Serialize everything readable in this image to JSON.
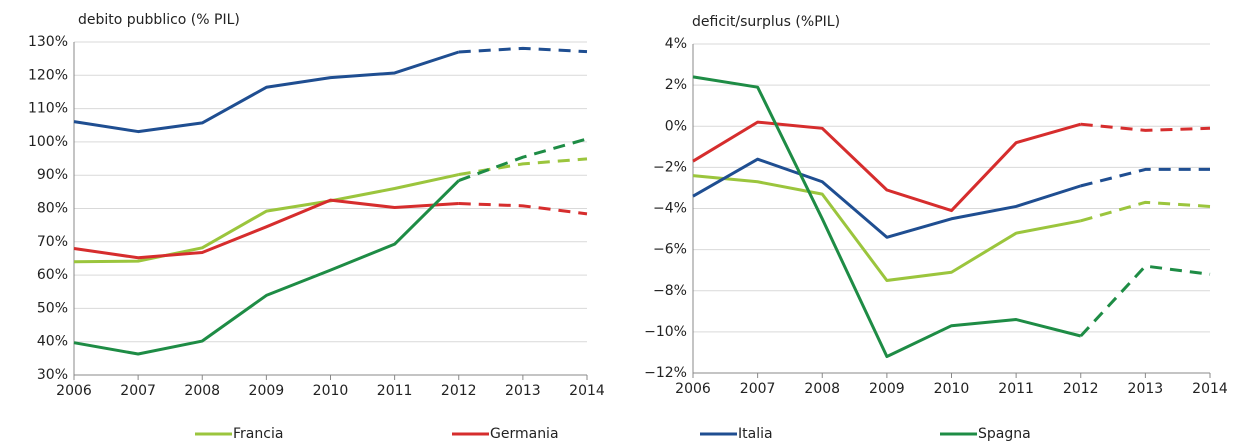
{
  "chart_data": [
    {
      "type": "line",
      "title": "debito pubblico (% PIL)",
      "categories": [
        "2006",
        "2007",
        "2008",
        "2009",
        "2010",
        "2011",
        "2012",
        "2013",
        "2014"
      ],
      "forecast_start": "2012",
      "grid": true,
      "ylim": [
        30,
        130
      ],
      "yticks": [
        {
          "value": 30,
          "label": "30%"
        },
        {
          "value": 40,
          "label": "40%"
        },
        {
          "value": 50,
          "label": "50%"
        },
        {
          "value": 60,
          "label": "60%"
        },
        {
          "value": 70,
          "label": "70%"
        },
        {
          "value": 80,
          "label": "80%"
        },
        {
          "value": 90,
          "label": "90%"
        },
        {
          "value": 100,
          "label": "100%"
        },
        {
          "value": 110,
          "label": "110%"
        },
        {
          "value": 120,
          "label": "120%"
        },
        {
          "value": 130,
          "label": "130%"
        }
      ],
      "series": [
        {
          "name": "Francia",
          "color": "#9bc53d",
          "values": [
            64,
            64.2,
            68.2,
            79.2,
            82.3,
            86,
            90.2,
            93.4,
            94.9
          ]
        },
        {
          "name": "Germania",
          "color": "#d62d2d",
          "values": [
            68,
            65.2,
            66.8,
            74.5,
            82.5,
            80.3,
            81.5,
            80.8,
            78.4
          ]
        },
        {
          "name": "Italia",
          "color": "#1f4e91",
          "values": [
            106.1,
            103.1,
            105.7,
            116.4,
            119.3,
            120.7,
            127,
            128.1,
            127.1
          ]
        },
        {
          "name": "Spagna",
          "color": "#1e8c45",
          "values": [
            39.7,
            36.3,
            40.2,
            53.9,
            61.5,
            69.3,
            88.4,
            95.4,
            100.9
          ]
        }
      ]
    },
    {
      "type": "line",
      "title": "deficit/surplus (%PIL)",
      "categories": [
        "2006",
        "2007",
        "2008",
        "2009",
        "2010",
        "2011",
        "2012",
        "2013",
        "2014"
      ],
      "forecast_start": "2012",
      "grid": true,
      "ylim": [
        -12,
        4
      ],
      "yticks": [
        {
          "value": -12,
          "label": "−12%"
        },
        {
          "value": -10,
          "label": "−10%"
        },
        {
          "value": -8,
          "label": "−8%"
        },
        {
          "value": -6,
          "label": "−6%"
        },
        {
          "value": -4,
          "label": "−4%"
        },
        {
          "value": -2,
          "label": "−2%"
        },
        {
          "value": 0,
          "label": "0%"
        },
        {
          "value": 2,
          "label": "2%"
        },
        {
          "value": 4,
          "label": "4%"
        }
      ],
      "series": [
        {
          "name": "Francia",
          "color": "#9bc53d",
          "values": [
            -2.4,
            -2.7,
            -3.3,
            -7.5,
            -7.1,
            -5.2,
            -4.6,
            -3.7,
            -3.9
          ]
        },
        {
          "name": "Germania",
          "color": "#d62d2d",
          "values": [
            -1.7,
            0.2,
            -0.1,
            -3.1,
            -4.1,
            -0.8,
            0.1,
            -0.2,
            -0.1
          ]
        },
        {
          "name": "Italia",
          "color": "#1f4e91",
          "values": [
            -3.4,
            -1.6,
            -2.7,
            -5.4,
            -4.5,
            -3.9,
            -2.9,
            -2.1,
            -2.1
          ]
        },
        {
          "name": "Spagna",
          "color": "#1e8c45",
          "values": [
            2.4,
            1.9,
            -4.5,
            -11.2,
            -9.7,
            -9.4,
            -10.2,
            -6.8,
            -7.2
          ]
        }
      ]
    }
  ]
}
